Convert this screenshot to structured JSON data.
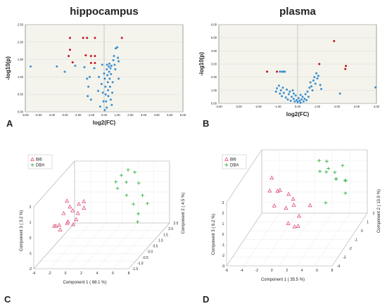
{
  "colors": {
    "blue": "#3a8fd0",
    "red": "#c0171e",
    "bi6": "#e0507a",
    "dba": "#3cb84a",
    "frame": "#888888",
    "grid": "#dddddd",
    "plotbg": "#f4f4ec"
  },
  "chart_data": [
    {
      "panel": "A",
      "type": "scatter",
      "title": "hippocampus",
      "xlabel": "log2(FC)",
      "ylabel": "-log10(p)",
      "xlim": [
        -6,
        6
      ],
      "ylim": [
        0,
        2.5
      ],
      "xticks": [
        "-6.00",
        "-5.00",
        "-4.00",
        "-3.00",
        "-2.00",
        "-1.00",
        "0.00",
        "1.00",
        "2.00",
        "3.00",
        "4.00",
        "5.00",
        "6.00"
      ],
      "yticks": [
        "0.00",
        "0.50",
        "1.00",
        "1.50",
        "2.00",
        "2.50"
      ],
      "series": [
        {
          "color": "red",
          "points": [
            [
              -2.6,
              2.12
            ],
            [
              -2.6,
              1.78
            ],
            [
              -2.7,
              1.6
            ],
            [
              -2.4,
              1.42
            ],
            [
              -1.6,
              2.12
            ],
            [
              -1.3,
              2.12
            ],
            [
              -1.4,
              1.62
            ],
            [
              -1.0,
              1.6
            ],
            [
              -0.7,
              1.6
            ],
            [
              -1.0,
              1.4
            ],
            [
              -0.7,
              1.4
            ],
            [
              -0.7,
              2.12
            ],
            [
              1.35,
              2.12
            ]
          ]
        },
        {
          "color": "blue",
          "points": [
            [
              -5.6,
              1.3
            ],
            [
              -3.6,
              1.3
            ],
            [
              -3.0,
              1.15
            ],
            [
              -2.2,
              1.32
            ],
            [
              -1.5,
              1.28
            ],
            [
              -1.3,
              0.95
            ],
            [
              -1.2,
              0.72
            ],
            [
              -1.25,
              0.45
            ],
            [
              -1.1,
              1.0
            ],
            [
              -1.0,
              0.35
            ],
            [
              -0.75,
              1.25
            ],
            [
              -0.4,
              1.0
            ],
            [
              -0.45,
              0.6
            ],
            [
              -0.2,
              0.8
            ],
            [
              -0.1,
              0.55
            ],
            [
              -0.05,
              0.3
            ],
            [
              0.0,
              1.1
            ],
            [
              0.05,
              0.95
            ],
            [
              0.1,
              0.72
            ],
            [
              0.12,
              0.5
            ],
            [
              0.15,
              0.3
            ],
            [
              0.2,
              1.22
            ],
            [
              0.22,
              1.35
            ],
            [
              0.25,
              1.05
            ],
            [
              0.28,
              0.85
            ],
            [
              0.3,
              0.62
            ],
            [
              0.32,
              0.45
            ],
            [
              0.35,
              1.3
            ],
            [
              0.38,
              1.15
            ],
            [
              0.4,
              1.38
            ],
            [
              0.42,
              0.95
            ],
            [
              0.45,
              0.72
            ],
            [
              0.48,
              1.25
            ],
            [
              0.5,
              0.35
            ],
            [
              0.52,
              1.08
            ],
            [
              0.55,
              1.32
            ],
            [
              0.58,
              0.2
            ],
            [
              0.62,
              0.55
            ],
            [
              0.65,
              0.85
            ],
            [
              0.7,
              1.48
            ],
            [
              0.75,
              1.6
            ],
            [
              0.8,
              1.35
            ],
            [
              0.85,
              1.22
            ],
            [
              0.88,
              1.82
            ],
            [
              1.0,
              1.85
            ],
            [
              1.05,
              1.55
            ],
            [
              1.1,
              1.45
            ],
            [
              1.1,
              0.95
            ],
            [
              -0.3,
              0.15
            ],
            [
              -0.15,
              1.35
            ],
            [
              0.05,
              0.05
            ],
            [
              0.2,
              0.12
            ]
          ]
        }
      ]
    },
    {
      "panel": "B",
      "type": "scatter",
      "title": "plasma",
      "xlabel": "log2(FC)",
      "ylabel": "-log10(p)",
      "xlim": [
        -4,
        4
      ],
      "ylim": [
        0,
        6
      ],
      "xticks": [
        "-4.00",
        "-3.00",
        "-2.00",
        "-1.00",
        "0.00",
        "1.00",
        "2.00",
        "3.00",
        "4.00"
      ],
      "yticks": [
        "0.00",
        "1.00",
        "2.00",
        "3.00",
        "4.00",
        "5.00",
        "6.00"
      ],
      "series": [
        {
          "color": "red",
          "points": [
            [
              -1.55,
              2.42
            ],
            [
              -1.05,
              2.42
            ],
            [
              1.85,
              4.75
            ],
            [
              1.1,
              3.0
            ],
            [
              2.45,
              2.85
            ],
            [
              2.42,
              2.62
            ]
          ]
        },
        {
          "color": "blue",
          "points": [
            [
              -0.9,
              2.42
            ],
            [
              -0.8,
              2.42
            ],
            [
              -0.72,
              2.42
            ],
            [
              -0.65,
              2.42
            ],
            [
              3.95,
              1.22
            ],
            [
              2.15,
              0.75
            ],
            [
              -1.1,
              0.9
            ],
            [
              -1.05,
              1.15
            ],
            [
              -0.95,
              1.35
            ],
            [
              -0.9,
              0.75
            ],
            [
              -0.85,
              1.0
            ],
            [
              -0.8,
              0.55
            ],
            [
              -0.75,
              1.2
            ],
            [
              -0.7,
              0.8
            ],
            [
              -0.6,
              0.45
            ],
            [
              -0.55,
              1.05
            ],
            [
              -0.5,
              0.3
            ],
            [
              -0.45,
              0.7
            ],
            [
              -0.4,
              0.9
            ],
            [
              -0.35,
              0.2
            ],
            [
              -0.3,
              0.5
            ],
            [
              -0.25,
              1.0
            ],
            [
              -0.2,
              0.35
            ],
            [
              -0.15,
              0.15
            ],
            [
              -0.1,
              0.6
            ],
            [
              -0.05,
              0.25
            ],
            [
              0.0,
              0.1
            ],
            [
              0.05,
              0.4
            ],
            [
              0.1,
              0.2
            ],
            [
              0.15,
              0.05
            ],
            [
              0.2,
              0.3
            ],
            [
              0.25,
              0.5
            ],
            [
              0.3,
              0.15
            ],
            [
              0.35,
              0.35
            ],
            [
              0.4,
              0.7
            ],
            [
              0.45,
              0.25
            ],
            [
              0.5,
              0.9
            ],
            [
              0.55,
              0.5
            ],
            [
              0.6,
              1.2
            ],
            [
              0.65,
              1.6
            ],
            [
              0.7,
              1.3
            ],
            [
              0.75,
              1.0
            ],
            [
              0.8,
              1.75
            ],
            [
              0.85,
              2.0
            ],
            [
              0.9,
              1.5
            ],
            [
              0.95,
              2.3
            ],
            [
              1.0,
              1.9
            ],
            [
              1.05,
              2.1
            ],
            [
              1.15,
              1.4
            ],
            [
              1.2,
              1.1
            ],
            [
              -0.2,
              0.75
            ],
            [
              0.15,
              0.65
            ]
          ]
        }
      ]
    },
    {
      "panel": "C",
      "type": "scatter",
      "subtype": "3d",
      "legend": [
        "Bl6",
        "DBA"
      ],
      "xlabel": "Component 1 ( 68.1 %)",
      "ylabel": "Component 2 ( 4.5 %)",
      "zlabel": "Component 3 ( 3.2 %)",
      "xticks": [
        "-4",
        "-2",
        "0",
        "2",
        "4",
        "6",
        "8"
      ],
      "yticks": [
        "-1.5",
        "-1.0",
        "-0.5",
        "0.0",
        "0.5",
        "1.0",
        "1.5",
        "2.0",
        "2.5"
      ],
      "zticks": [
        "-2",
        "-1",
        "0",
        "1",
        "2"
      ],
      "series": [
        {
          "name": "Bl6",
          "marker": "triangle",
          "points": [
            [
              -3.4,
              0.2,
              -0.5
            ],
            [
              -3.1,
              -0.2,
              -0.2
            ],
            [
              -2.8,
              0.5,
              0.1
            ],
            [
              -2.6,
              0.0,
              -0.6
            ],
            [
              -2.4,
              0.8,
              0.3
            ],
            [
              -2.2,
              -0.4,
              0.0
            ],
            [
              -2.0,
              0.3,
              -0.3
            ],
            [
              -1.8,
              0.6,
              0.2
            ],
            [
              -1.6,
              -0.1,
              -0.1
            ],
            [
              -1.4,
              0.9,
              0.4
            ],
            [
              -1.2,
              0.2,
              -0.4
            ],
            [
              -1.0,
              0.5,
              0.1
            ],
            [
              -0.9,
              1.0,
              0.5
            ],
            [
              -0.7,
              0.1,
              0.0
            ],
            [
              -0.5,
              0.7,
              0.3
            ],
            [
              -2.9,
              0.9,
              0.6
            ]
          ]
        },
        {
          "name": "DBA",
          "marker": "plus",
          "points": [
            [
              2.5,
              1.5,
              1.4
            ],
            [
              2.8,
              1.8,
              1.6
            ],
            [
              3.1,
              1.2,
              1.2
            ],
            [
              3.4,
              2.0,
              1.8
            ],
            [
              3.7,
              1.6,
              1.3
            ],
            [
              4.0,
              2.2,
              1.5
            ],
            [
              4.5,
              1.0,
              0.9
            ],
            [
              5.0,
              1.8,
              1.1
            ],
            [
              5.5,
              0.9,
              0.4
            ],
            [
              6.0,
              1.4,
              0.6
            ],
            [
              6.5,
              0.6,
              0.0
            ],
            [
              7.0,
              1.1,
              0.3
            ],
            [
              6.8,
              0.3,
              -0.3
            ]
          ]
        }
      ]
    },
    {
      "panel": "D",
      "type": "scatter",
      "subtype": "3d",
      "legend": [
        "Bl6",
        "DBA"
      ],
      "xlabel": "Component 1 ( 35.5 %)",
      "ylabel": "Component 2 ( 10.9 %)",
      "zlabel": "Component 3 ( 6.2 %)",
      "xticks": [
        "-6",
        "-4",
        "-2",
        "0",
        "2",
        "4",
        "6",
        "8"
      ],
      "yticks": [
        "-4",
        "-3",
        "-2",
        "-1",
        "0",
        "1",
        "2"
      ],
      "zticks": [
        "-3",
        "-2",
        "-1",
        "0",
        "1",
        "2",
        "3"
      ],
      "series": [
        {
          "name": "Bl6",
          "marker": "triangle",
          "points": [
            [
              -3.5,
              0.5,
              1.6
            ],
            [
              -3.0,
              -0.5,
              1.2
            ],
            [
              -2.5,
              0.2,
              0.6
            ],
            [
              -2.0,
              -1.0,
              0.2
            ],
            [
              -1.5,
              0.8,
              -0.2
            ],
            [
              -1.0,
              -0.3,
              -0.6
            ],
            [
              -0.5,
              0.4,
              -0.9
            ],
            [
              0.0,
              -1.2,
              -1.3
            ],
            [
              0.5,
              0.0,
              -1.6
            ],
            [
              1.0,
              -0.8,
              -1.9
            ],
            [
              1.5,
              0.6,
              -1.1
            ],
            [
              -2.8,
              1.0,
              0.0
            ],
            [
              -1.2,
              1.2,
              -1.0
            ],
            [
              0.3,
              -0.5,
              -2.2
            ]
          ]
        },
        {
          "name": "DBA",
          "marker": "plus",
          "points": [
            [
              2.0,
              1.5,
              2.4
            ],
            [
              2.5,
              1.0,
              1.8
            ],
            [
              3.0,
              1.8,
              1.4
            ],
            [
              3.5,
              0.8,
              1.9
            ],
            [
              4.0,
              1.6,
              1.2
            ],
            [
              4.5,
              1.2,
              0.9
            ],
            [
              5.0,
              0.5,
              1.5
            ],
            [
              5.5,
              1.4,
              0.6
            ],
            [
              6.0,
              0.9,
              1.0
            ],
            [
              6.5,
              0.2,
              0.4
            ],
            [
              3.8,
              0.3,
              -0.6
            ],
            [
              2.7,
              1.9,
              2.0
            ],
            [
              4.8,
              1.9,
              1.6
            ]
          ]
        }
      ]
    }
  ],
  "panel_labels": [
    "A",
    "B",
    "C",
    "D"
  ]
}
